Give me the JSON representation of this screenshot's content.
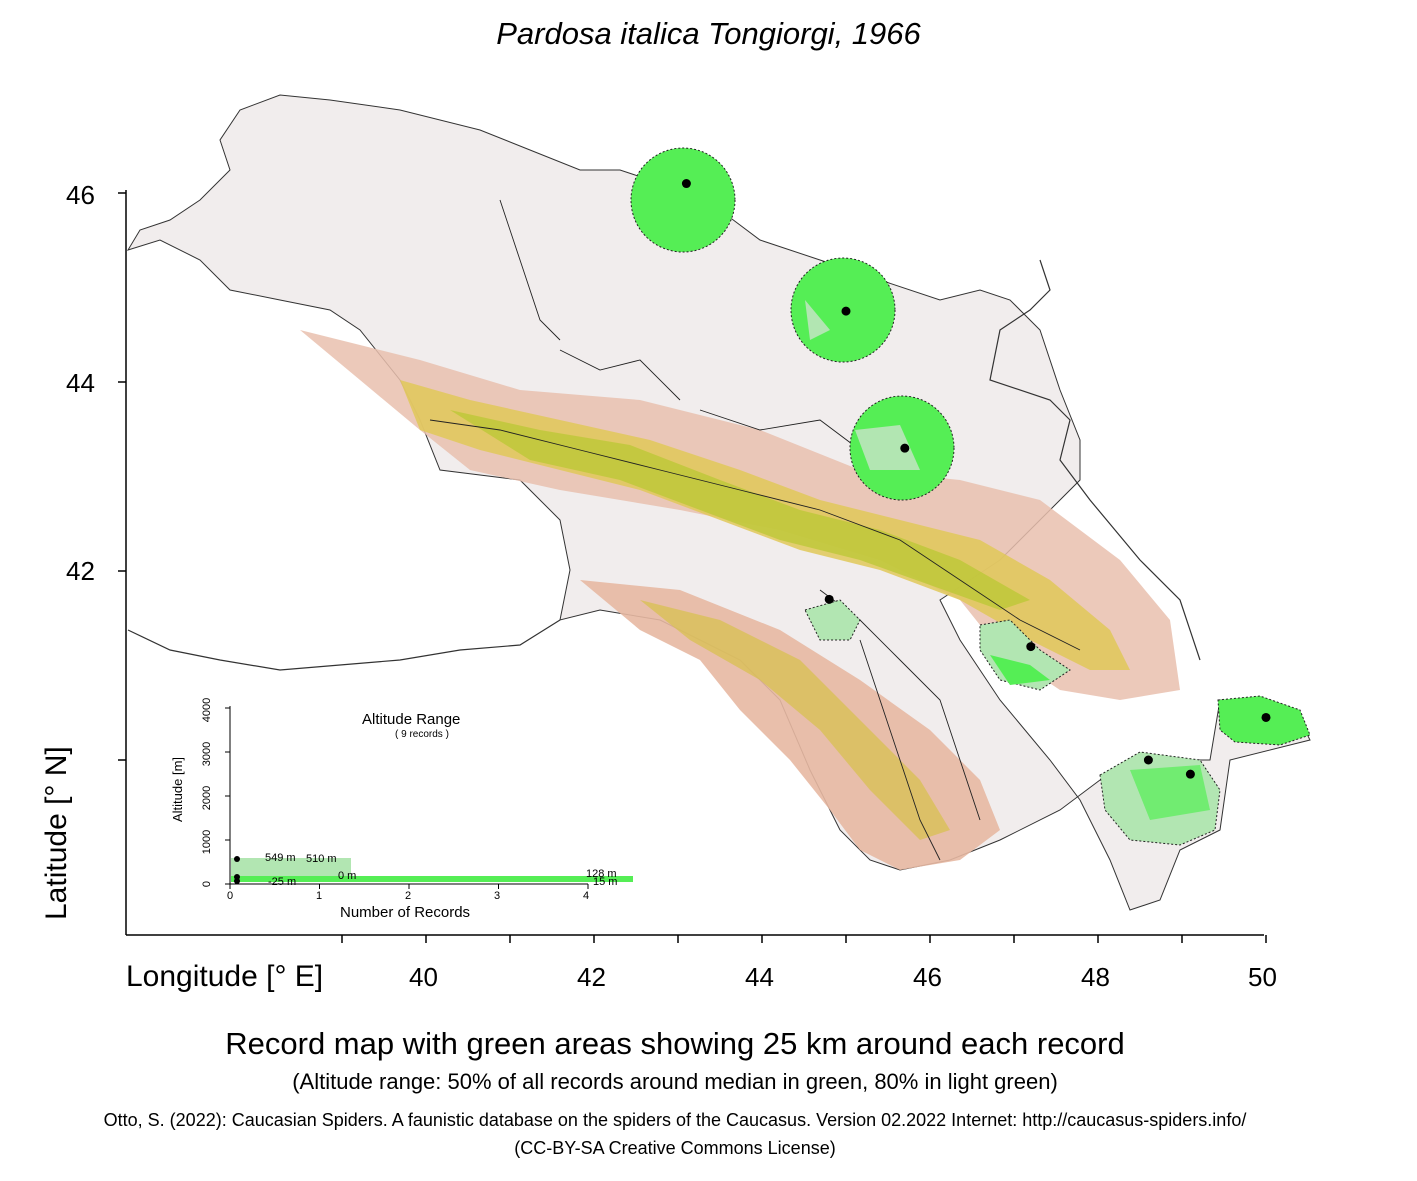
{
  "title": "Pardosa italica Tongiorgi, 1966",
  "axes": {
    "y_title": "Latitude [° N]",
    "x_title": "Longitude [° E]",
    "y_ticks": [
      "46",
      "44",
      "42"
    ],
    "x_ticks": [
      "40",
      "42",
      "44",
      "46",
      "48",
      "50"
    ]
  },
  "records": [
    {
      "lon": 43.1,
      "lat": 46.1
    },
    {
      "lon": 45.0,
      "lat": 44.75
    },
    {
      "lon": 45.7,
      "lat": 43.3
    },
    {
      "lon": 44.8,
      "lat": 41.7
    },
    {
      "lon": 47.2,
      "lat": 41.2
    },
    {
      "lon": 50.0,
      "lat": 40.45
    },
    {
      "lon": 48.6,
      "lat": 40.0
    },
    {
      "lon": 49.1,
      "lat": 39.85
    }
  ],
  "inset": {
    "title": "Altitude Range",
    "subtitle": "( 9 records )",
    "y_label": "Altitude [m]",
    "x_label": "Number of Records",
    "y_ticks": [
      "0",
      "1000",
      "2000",
      "3000",
      "4000"
    ],
    "x_ticks": [
      "0",
      "1",
      "2",
      "3",
      "4"
    ],
    "labels": [
      "549 m",
      "510 m",
      "0 m",
      "-25 m",
      "128 m",
      "15 m"
    ]
  },
  "captions": {
    "main": "Record map with green areas showing 25 km around each record",
    "sub": "(Altitude range: 50% of all records around median in green, 80% in light green)",
    "citation": "Otto, S. (2022): Caucasian Spiders. A faunistic database on the spiders of the Caucasus. Version 02.2022 Internet: http://caucasus-spiders.info/",
    "license": "(CC-BY-SA Creative Commons License)"
  },
  "colors": {
    "record_green": "#55ee55",
    "record_light_green": "#b2e6b2",
    "lowland": "#f0e8e6",
    "terrain_mid": "#e8b8a0",
    "terrain_high": "#e0d040"
  }
}
